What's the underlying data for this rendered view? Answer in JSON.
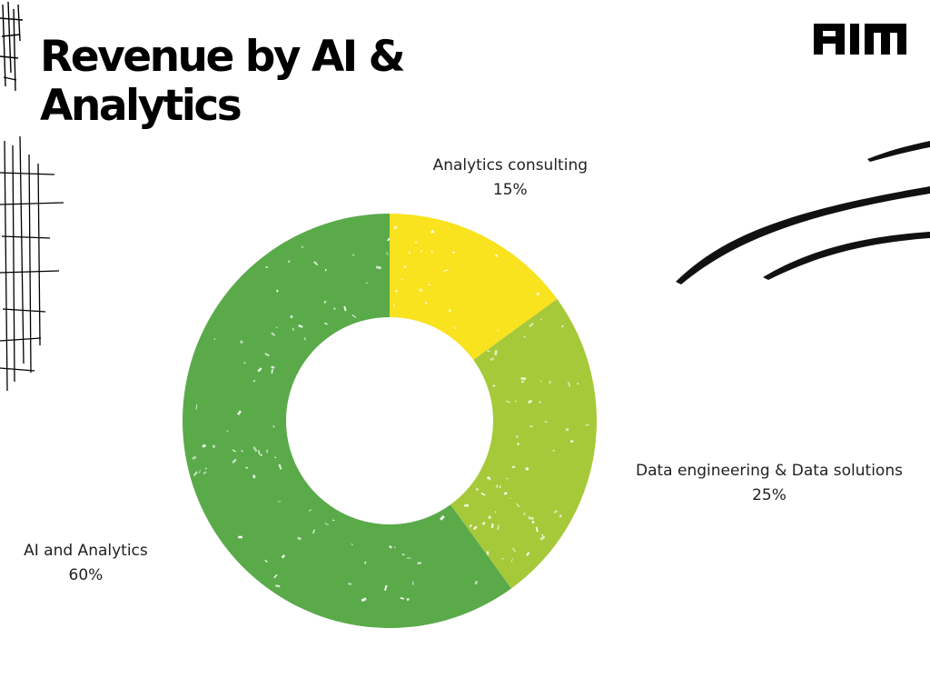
{
  "title": "Revenue by AI & Analytics",
  "logo": {
    "text": "AIM",
    "icon": "aim-logo-icon"
  },
  "chart_data": {
    "type": "pie",
    "variant": "donut",
    "title": "Revenue by AI & Analytics",
    "categories": [
      "Analytics consulting",
      "Data engineering & Data solutions",
      "AI and Analytics"
    ],
    "values": [
      15,
      25,
      60
    ],
    "value_labels": [
      "15%",
      "25%",
      "60%"
    ],
    "colors": [
      "#F9E21E",
      "#A6C93A",
      "#5AAA4A"
    ],
    "start_angle": "12 o'clock",
    "direction": "clockwise",
    "legend": "none",
    "labels_position": "outside"
  }
}
